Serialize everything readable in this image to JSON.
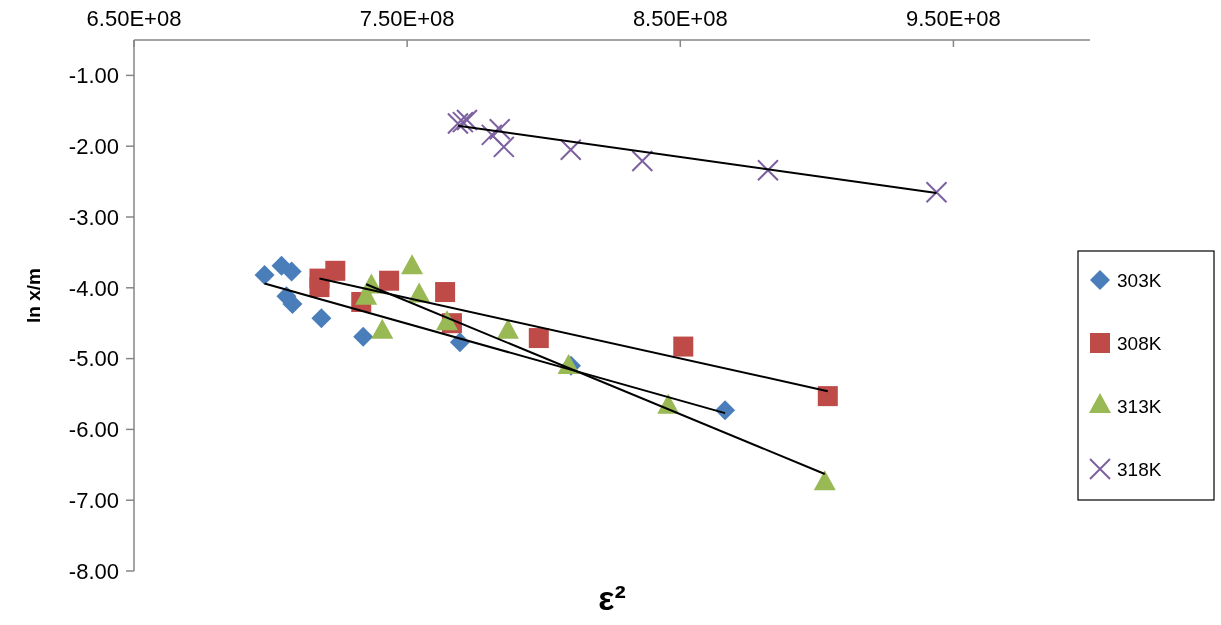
{
  "chart_data": {
    "type": "scatter",
    "xlabel": "ε²",
    "ylabel": "ln x/m",
    "xlim": [
      650000000,
      1000000000
    ],
    "xticks": [
      {
        "value": 650000000,
        "label": "6.50E+08"
      },
      {
        "value": 750000000,
        "label": "7.50E+08"
      },
      {
        "value": 850000000,
        "label": "8.50E+08"
      },
      {
        "value": 950000000,
        "label": "9.50E+08"
      }
    ],
    "ylim": [
      -8,
      -0.5
    ],
    "yticks": [
      {
        "value": -1,
        "label": "-1.00"
      },
      {
        "value": -2,
        "label": "-2.00"
      },
      {
        "value": -3,
        "label": "-3.00"
      },
      {
        "value": -4,
        "label": "-4.00"
      },
      {
        "value": -5,
        "label": "-5.00"
      },
      {
        "value": -6,
        "label": "-6.00"
      },
      {
        "value": -7,
        "label": "-7.00"
      },
      {
        "value": -8,
        "label": "-8.00"
      }
    ],
    "grid": false,
    "legend": "right",
    "series": [
      {
        "name": "303K",
        "color": "#4a7ebb",
        "marker": "diamond",
        "x": [
          697800000,
          704000000,
          707700000,
          705800000,
          708000000,
          718600000,
          733900000,
          769300000,
          810000000,
          866400000
        ],
        "values": [
          -3.82,
          -3.69,
          -3.77,
          -4.12,
          -4.23,
          -4.43,
          -4.69,
          -4.77,
          -5.1,
          -5.73
        ]
      },
      {
        "name": "308K",
        "color": "#be4b48",
        "marker": "square",
        "x": [
          723700000,
          717900000,
          717900000,
          733200000,
          743400000,
          763900000,
          766400000,
          798200000,
          851100000,
          904000000
        ],
        "values": [
          -3.76,
          -3.87,
          -3.99,
          -4.2,
          -3.9,
          -4.06,
          -4.5,
          -4.71,
          -4.83,
          -5.53
        ]
      },
      {
        "name": "313K",
        "color": "#98b954",
        "marker": "triangle",
        "x": [
          751800000,
          736900000,
          735000000,
          754400000,
          740900000,
          764600000,
          786900000,
          809100000,
          845600000,
          902900000
        ],
        "values": [
          -3.71,
          -3.98,
          -4.14,
          -4.11,
          -4.62,
          -4.5,
          -4.62,
          -5.12,
          -5.68,
          -6.76
        ]
      },
      {
        "name": "318K",
        "color": "#7d60a0",
        "marker": "cross",
        "x": [
          768600000,
          770400000,
          771900000,
          781000000,
          783900000,
          785400000,
          809900000,
          836100000,
          882100000,
          943800000
        ],
        "values": [
          -1.68,
          -1.66,
          -1.63,
          -1.84,
          -1.76,
          -2.01,
          -2.05,
          -2.21,
          -2.34,
          -2.65
        ]
      },
      {
        "type": "line",
        "color": "#000000",
        "marker": "none",
        "x": [
          697800000,
          866400000
        ],
        "values": [
          -3.94,
          -5.77
        ]
      },
      {
        "type": "line",
        "color": "#000000",
        "marker": "none",
        "x": [
          717900000,
          904000000
        ],
        "values": [
          -3.87,
          -5.46
        ]
      },
      {
        "type": "line",
        "color": "#000000",
        "marker": "none",
        "x": [
          735000000,
          902900000
        ],
        "values": [
          -3.95,
          -6.63
        ]
      },
      {
        "type": "line",
        "color": "#000000",
        "marker": "none",
        "x": [
          768600000,
          943800000
        ],
        "values": [
          -1.71,
          -2.66
        ]
      }
    ]
  }
}
